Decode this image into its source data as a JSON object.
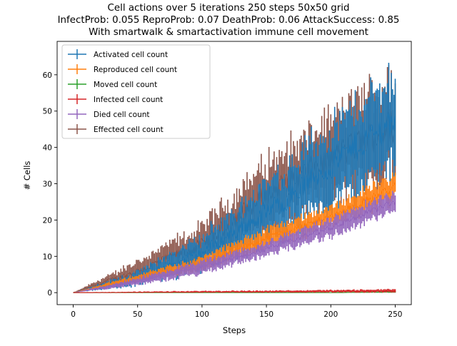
{
  "chart_data": {
    "type": "line",
    "title_lines": [
      "Cell actions over 5 iterations 250 steps 50x50 grid",
      "InfectProb: 0.055 ReproProb: 0.07 DeathProb: 0.06 AttackSuccess: 0.85",
      "With smartwalk & smartactivation immune cell movement"
    ],
    "xlabel": "Steps",
    "ylabel": "# Cells",
    "xlim": [
      -12.5,
      262.5
    ],
    "ylim": [
      -3.3,
      69.2
    ],
    "xticks": [
      0,
      50,
      100,
      150,
      200,
      250
    ],
    "yticks": [
      0,
      10,
      20,
      30,
      40,
      50,
      60
    ],
    "legend_position": "upper-left",
    "series": [
      {
        "name": "Activated cell count",
        "color": "#1f77b4",
        "x": [
          0,
          50,
          100,
          150,
          200,
          250
        ],
        "values": [
          0,
          4,
          11,
          22,
          35,
          48
        ],
        "error": [
          0,
          2,
          5,
          9,
          12,
          14
        ]
      },
      {
        "name": "Reproduced cell count",
        "color": "#ff7f0e",
        "x": [
          0,
          50,
          100,
          150,
          200,
          250
        ],
        "values": [
          0,
          4,
          8,
          15,
          21,
          29
        ],
        "error": [
          0,
          1,
          2,
          3,
          3,
          4
        ]
      },
      {
        "name": "Moved cell count",
        "color": "#2ca02c",
        "x": [
          0,
          50,
          100,
          150,
          200,
          250
        ],
        "values": [
          0,
          0,
          0,
          0,
          0,
          0.2
        ],
        "error": [
          0,
          0,
          0,
          0,
          0,
          0.3
        ]
      },
      {
        "name": "Infected cell count",
        "color": "#d62728",
        "x": [
          0,
          50,
          100,
          150,
          200,
          250
        ],
        "values": [
          0,
          0.1,
          0.2,
          0.3,
          0.4,
          0.5
        ],
        "error": [
          0,
          0.2,
          0.3,
          0.3,
          0.4,
          0.5
        ]
      },
      {
        "name": "Died cell count",
        "color": "#9467bd",
        "x": [
          0,
          50,
          100,
          150,
          200,
          250
        ],
        "values": [
          0,
          3,
          7,
          12,
          18,
          25
        ],
        "error": [
          0,
          1,
          2,
          2,
          3,
          3
        ]
      },
      {
        "name": "Effected cell count",
        "color": "#8c564b",
        "x": [
          0,
          50,
          100,
          150,
          200,
          250
        ],
        "values": [
          0,
          6,
          13,
          27,
          37,
          46
        ],
        "error": [
          0,
          3,
          6,
          10,
          12,
          16
        ]
      }
    ]
  }
}
